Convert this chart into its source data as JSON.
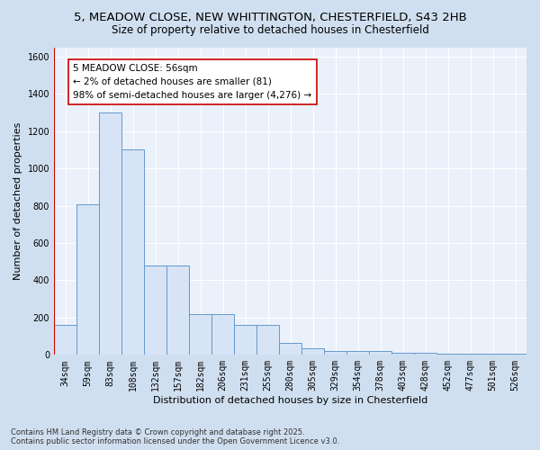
{
  "title_line1": "5, MEADOW CLOSE, NEW WHITTINGTON, CHESTERFIELD, S43 2HB",
  "title_line2": "Size of property relative to detached houses in Chesterfield",
  "xlabel": "Distribution of detached houses by size in Chesterfield",
  "ylabel": "Number of detached properties",
  "categories": [
    "34sqm",
    "59sqm",
    "83sqm",
    "108sqm",
    "132sqm",
    "157sqm",
    "182sqm",
    "206sqm",
    "231sqm",
    "255sqm",
    "280sqm",
    "305sqm",
    "329sqm",
    "354sqm",
    "378sqm",
    "403sqm",
    "428sqm",
    "452sqm",
    "477sqm",
    "501sqm",
    "526sqm"
  ],
  "values": [
    160,
    810,
    1300,
    1100,
    480,
    480,
    220,
    220,
    160,
    160,
    65,
    35,
    20,
    20,
    20,
    10,
    10,
    5,
    5,
    5,
    5
  ],
  "bar_color": "#d6e4f5",
  "bar_edge_color": "#6699cc",
  "plot_bg_color": "#eaf1fb",
  "outer_bg_color": "#d0dff0",
  "marker_color": "#cc0000",
  "annotation_text": "5 MEADOW CLOSE: 56sqm\n← 2% of detached houses are smaller (81)\n98% of semi-detached houses are larger (4,276) →",
  "annotation_box_color": "white",
  "annotation_edge_color": "#cc0000",
  "ylim": [
    0,
    1650
  ],
  "yticks": [
    0,
    200,
    400,
    600,
    800,
    1000,
    1200,
    1400,
    1600
  ],
  "footnote": "Contains HM Land Registry data © Crown copyright and database right 2025.\nContains public sector information licensed under the Open Government Licence v3.0.",
  "title_fontsize": 9.5,
  "subtitle_fontsize": 8.5,
  "axis_label_fontsize": 8,
  "tick_fontsize": 7,
  "annotation_fontsize": 7.5
}
